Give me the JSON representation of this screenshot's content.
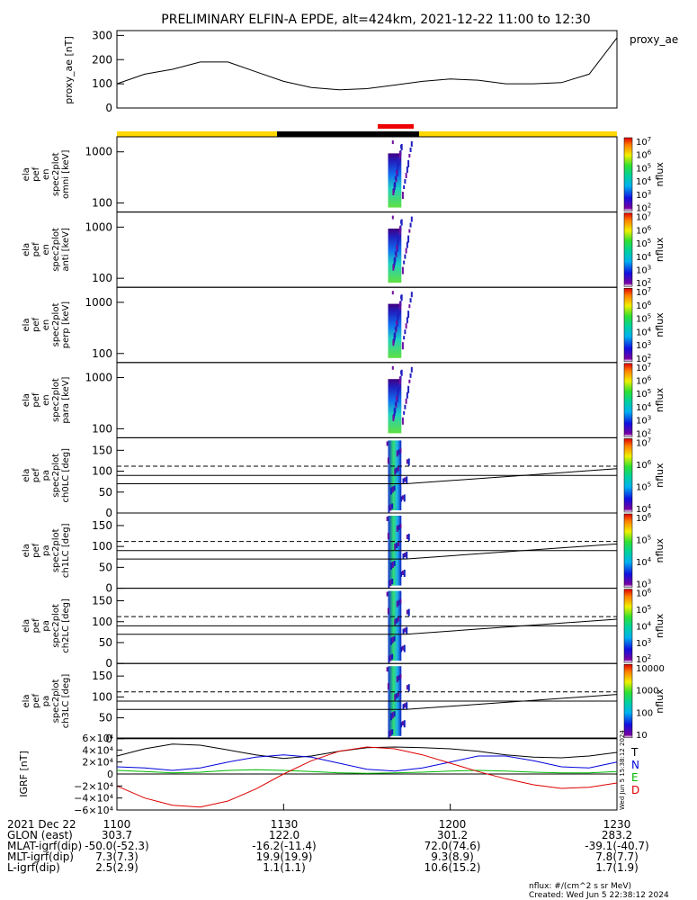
{
  "title": "PRELIMINARY ELFIN-A EPDE, alt=424km, 2021-12-22 11:00 to 12:30",
  "colors": {
    "status_yellow": "#ffd700",
    "status_black": "#000000",
    "status_red": "#ee0000",
    "mlt_blue": "#0000dd",
    "mlt_green": "#00bb00",
    "mlt_red": "#dd0000"
  },
  "chart_data": [
    {
      "type": "line",
      "panel": "proxy_ae",
      "ylabel": "proxy_ae [nT]",
      "legend": "proxy_ae",
      "ylim": [
        0,
        300
      ],
      "yticks": [
        "300",
        "200",
        "100",
        "0"
      ],
      "x_minutes": [
        0,
        5,
        10,
        15,
        20,
        25,
        30,
        35,
        40,
        45,
        50,
        55,
        60,
        65,
        70,
        75,
        80,
        85,
        90
      ],
      "values": [
        100,
        140,
        160,
        190,
        190,
        150,
        110,
        85,
        75,
        80,
        95,
        110,
        120,
        115,
        100,
        100,
        105,
        140,
        290
      ]
    },
    {
      "type": "heatmap",
      "panel": "omni",
      "ylabel": "ela pef en spec2plot omni [keV]",
      "yscale": "log",
      "yticks": [
        "1000",
        "100"
      ],
      "colorbar": {
        "label": "nflux",
        "ticks": [
          "10^7",
          "10^6",
          "10^5",
          "10^4",
          "10^3",
          "10^2"
        ]
      },
      "active_interval_minutes": [
        50,
        53
      ]
    },
    {
      "type": "heatmap",
      "panel": "anti",
      "ylabel": "ela pef en spec2plot anti [keV]",
      "yscale": "log",
      "yticks": [
        "1000",
        "100"
      ],
      "colorbar": {
        "label": "nflux",
        "ticks": [
          "10^7",
          "10^6",
          "10^5",
          "10^4",
          "10^3",
          "10^2"
        ]
      }
    },
    {
      "type": "heatmap",
      "panel": "perp",
      "ylabel": "ela pef en spec2plot perp [keV]",
      "yscale": "log",
      "yticks": [
        "1000",
        "100"
      ],
      "colorbar": {
        "label": "nflux",
        "ticks": [
          "10^7",
          "10^6",
          "10^5",
          "10^4",
          "10^3",
          "10^2"
        ]
      }
    },
    {
      "type": "heatmap",
      "panel": "para",
      "ylabel": "ela pef en spec2plot para [keV]",
      "yscale": "log",
      "yticks": [
        "1000",
        "100"
      ],
      "colorbar": {
        "label": "nflux",
        "ticks": [
          "10^7",
          "10^6",
          "10^5",
          "10^4",
          "10^3",
          "10^2"
        ]
      }
    },
    {
      "type": "heatmap",
      "panel": "ch0LC",
      "ylabel": "ela pef pa spec2plot ch0LC [deg]",
      "ylim": [
        0,
        180
      ],
      "yticks": [
        "150",
        "100",
        "50",
        "0"
      ],
      "colorbar": {
        "label": "nflux",
        "ticks": [
          "10^7",
          "10^6",
          "10^5",
          "10^4"
        ]
      }
    },
    {
      "type": "heatmap",
      "panel": "ch1LC",
      "ylabel": "ela pef pa spec2plot ch1LC [deg]",
      "ylim": [
        0,
        180
      ],
      "yticks": [
        "150",
        "100",
        "50",
        "0"
      ],
      "colorbar": {
        "label": "nflux",
        "ticks": [
          "10^6",
          "10^5",
          "10^4",
          "10^3"
        ]
      }
    },
    {
      "type": "heatmap",
      "panel": "ch2LC",
      "ylabel": "ela pef pa spec2plot ch2LC [deg]",
      "ylim": [
        0,
        180
      ],
      "yticks": [
        "150",
        "100",
        "50",
        "0"
      ],
      "colorbar": {
        "label": "nflux",
        "ticks": [
          "10^6",
          "10^5",
          "10^4",
          "10^3",
          "10^2"
        ]
      }
    },
    {
      "type": "heatmap",
      "panel": "ch3LC",
      "ylabel": "ela pef pa spec2plot ch3LC [deg]",
      "ylim": [
        0,
        180
      ],
      "yticks": [
        "150",
        "100",
        "50",
        "0"
      ],
      "colorbar": {
        "label": "nflux",
        "ticks": [
          "10000",
          "1000",
          "100",
          "10"
        ]
      }
    },
    {
      "type": "line",
      "panel": "igrf",
      "ylabel": "IGRF [nT]",
      "ylim": [
        -60000,
        60000
      ],
      "yticks": [
        "6×10⁴",
        "4×10⁴",
        "2×10⁴",
        "0",
        "−2×10⁴",
        "−4×10⁴",
        "−6×10⁴"
      ],
      "x_minutes": [
        0,
        5,
        10,
        15,
        20,
        25,
        30,
        35,
        40,
        45,
        50,
        55,
        60,
        65,
        70,
        75,
        80,
        85,
        90
      ],
      "series": [
        {
          "name": "T",
          "values": [
            30000,
            42000,
            50000,
            48000,
            40000,
            32000,
            26000,
            30000,
            38000,
            44000,
            45000,
            44000,
            42000,
            38000,
            32000,
            28000,
            27000,
            30000,
            36000
          ]
        },
        {
          "name": "N",
          "values": [
            12000,
            10000,
            6000,
            10000,
            20000,
            28000,
            32000,
            28000,
            18000,
            8000,
            5000,
            10000,
            20000,
            30000,
            30000,
            22000,
            12000,
            10000,
            20000
          ]
        },
        {
          "name": "E",
          "values": [
            6000,
            4000,
            2000,
            3000,
            6000,
            7000,
            6000,
            4000,
            2000,
            1000,
            2000,
            3000,
            5000,
            6000,
            5000,
            3000,
            2000,
            2000,
            4000
          ]
        },
        {
          "name": "D",
          "values": [
            -20000,
            -40000,
            -52000,
            -55000,
            -45000,
            -25000,
            0,
            22000,
            38000,
            45000,
            42000,
            32000,
            18000,
            4000,
            -8000,
            -18000,
            -24000,
            -22000,
            -15000
          ]
        }
      ]
    }
  ],
  "xaxis": {
    "tick_labels": [
      "1100",
      "1130",
      "1200",
      "1230"
    ],
    "rows": [
      {
        "label": "2021 Dec 22",
        "values": [
          "1100",
          "1130",
          "1200",
          "1230"
        ]
      },
      {
        "label": "GLON (east)",
        "values": [
          "303.7",
          "122.0",
          "301.2",
          "283.2"
        ]
      },
      {
        "label": "MLAT-igrf(dip)",
        "values": [
          "-50.0(-52.3)",
          "-16.2(-11.4)",
          "72.0(74.6)",
          "-39.1(-40.7)"
        ]
      },
      {
        "label": "MLT-igrf(dip)",
        "values": [
          "7.3(7.3)",
          "19.9(19.9)",
          "9.3(8.9)",
          "7.8(7.7)"
        ]
      },
      {
        "label": "L-igrf(dip)",
        "values": [
          "2.5(2.9)",
          "1.1(1.1)",
          "10.6(15.2)",
          "1.7(1.9)"
        ]
      }
    ]
  },
  "footer": {
    "units": "nflux: #/(cm^2 s sr MeV)",
    "created": "Created: Wed Jun  5 22:38:12 2024",
    "side_stamp": "Wed Jun  5 15:38:12 2024"
  }
}
